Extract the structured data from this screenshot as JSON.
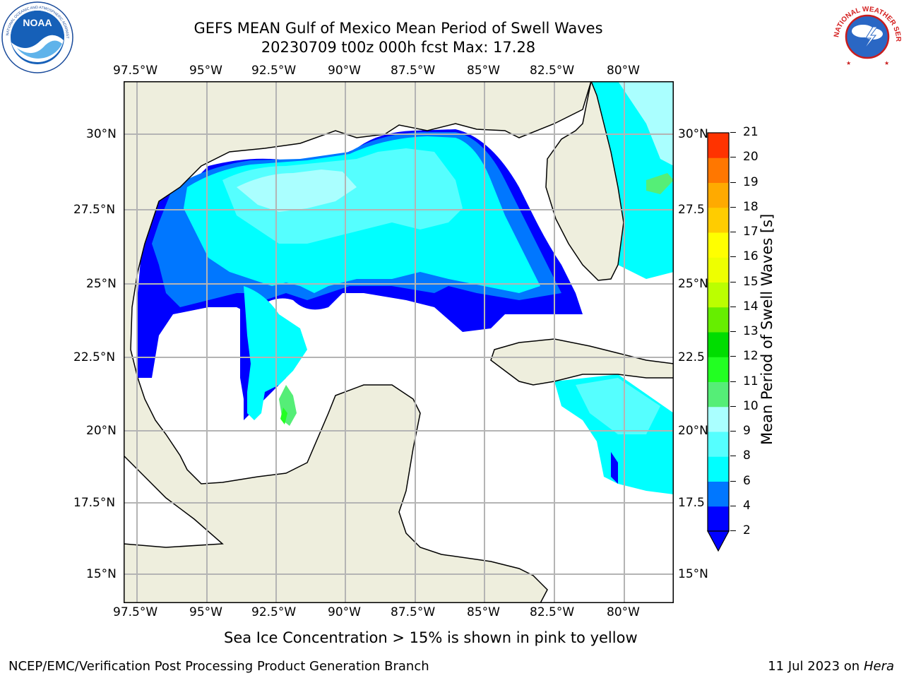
{
  "title": {
    "line1": "GEFS MEAN Gulf of Mexico Mean Period of Swell Waves",
    "line2": "20230709 t00z 000h fcst   Max: 17.28"
  },
  "logos": {
    "left": "noaa-logo",
    "left_text": "NOAA",
    "left_ring_text": "NATIONAL OCEANIC AND ATMOSPHERIC ADMINISTRATION · U.S. DEPARTMENT OF COMMERCE",
    "right": "nws-logo",
    "right_ring_text": "NATIONAL WEATHER SERVICE"
  },
  "map": {
    "lon_labels": [
      "97.5°W",
      "95°W",
      "92.5°W",
      "90°W",
      "87.5°W",
      "85°W",
      "82.5°W",
      "80°W"
    ],
    "lat_labels_left": [
      "30°N",
      "27.5°N",
      "25°N",
      "22.5°N",
      "20°N",
      "17.5°N",
      "15°N"
    ],
    "lat_labels_right": [
      "30°N",
      "27.5",
      "25°N",
      "22.5",
      "20°N",
      "17.5",
      "15°N"
    ],
    "colors": {
      "land": "#eeeedd",
      "ocean": "#ffffff",
      "grid": "#b4b4b4",
      "coast": "#000000"
    }
  },
  "colorbar": {
    "label": "Mean Period of Swell Waves [s]",
    "ticks": [
      "2",
      "4",
      "6",
      "8",
      "9",
      "10",
      "11",
      "12",
      "13",
      "14",
      "15",
      "16",
      "17",
      "18",
      "19",
      "20",
      "21"
    ],
    "colors": [
      "#0000ff",
      "#0077ff",
      "#00ffff",
      "#55ffff",
      "#aaffff",
      "#55ee77",
      "#22ff22",
      "#00dd00",
      "#66ee00",
      "#bbff00",
      "#eeff00",
      "#ffff00",
      "#ffcc00",
      "#ffaa00",
      "#ff7700",
      "#ff3300",
      "#ff0000"
    ]
  },
  "note": "Sea Ice Concentration > 15% is shown in pink to yellow",
  "footer": {
    "left": "NCEP/EMC/Verification Post Processing Product Generation Branch",
    "date": "11 Jul 2023 on ",
    "machine": "Hera"
  }
}
